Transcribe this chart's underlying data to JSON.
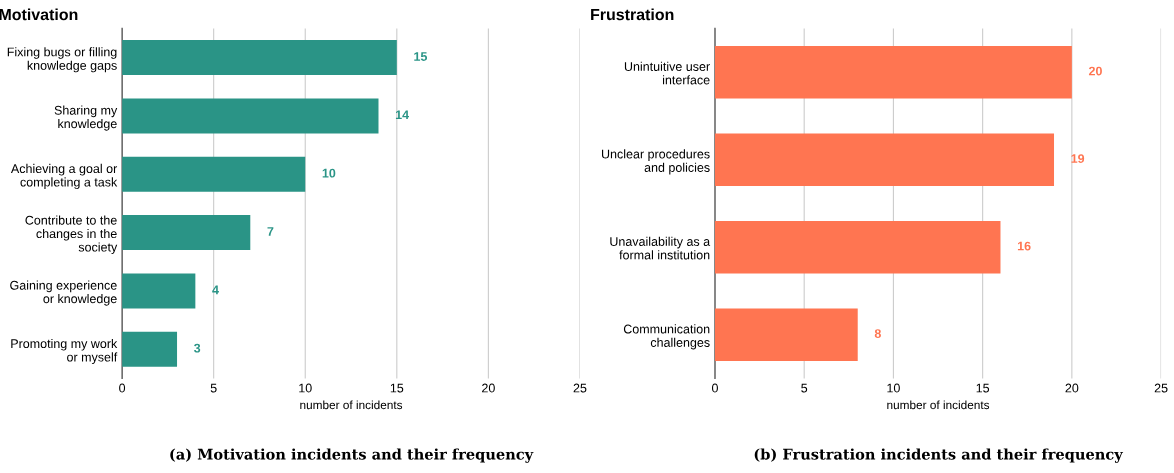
{
  "chart_data": [
    {
      "type": "bar",
      "orientation": "horizontal",
      "title": "Motivation",
      "xlabel": "number of incidents",
      "categories": [
        "Fixing bugs or filling\nknowledge gaps",
        "Sharing my\nknowledge",
        "Achieving a goal or\ncompleting a task",
        "Contribute to the\nchanges in the\nsociety",
        "Gaining experience\nor knowledge",
        "Promoting my work\nor myself"
      ],
      "values": [
        15,
        14,
        10,
        7,
        4,
        3
      ],
      "color": "#2a9486",
      "xlim": [
        0,
        25
      ],
      "xticks": [
        0,
        5,
        10,
        15,
        20,
        25
      ],
      "grid": "x",
      "data_labels": true,
      "annotations": [
        "(a) Motivation incidents and their frequency"
      ]
    },
    {
      "type": "bar",
      "orientation": "horizontal",
      "title": "Frustration",
      "xlabel": "number of incidents",
      "categories": [
        "Unintuitive user\ninterface",
        "Unclear procedures\nand policies",
        "Unavailability as a\nformal institution",
        "Communication\nchallenges"
      ],
      "values": [
        20,
        19,
        16,
        8
      ],
      "color": "#ff7551",
      "xlim": [
        0,
        25
      ],
      "xticks": [
        0,
        5,
        10,
        15,
        20,
        25
      ],
      "grid": "x",
      "data_labels": true,
      "annotations": [
        "(b) Frustration incidents and their frequency"
      ]
    }
  ]
}
